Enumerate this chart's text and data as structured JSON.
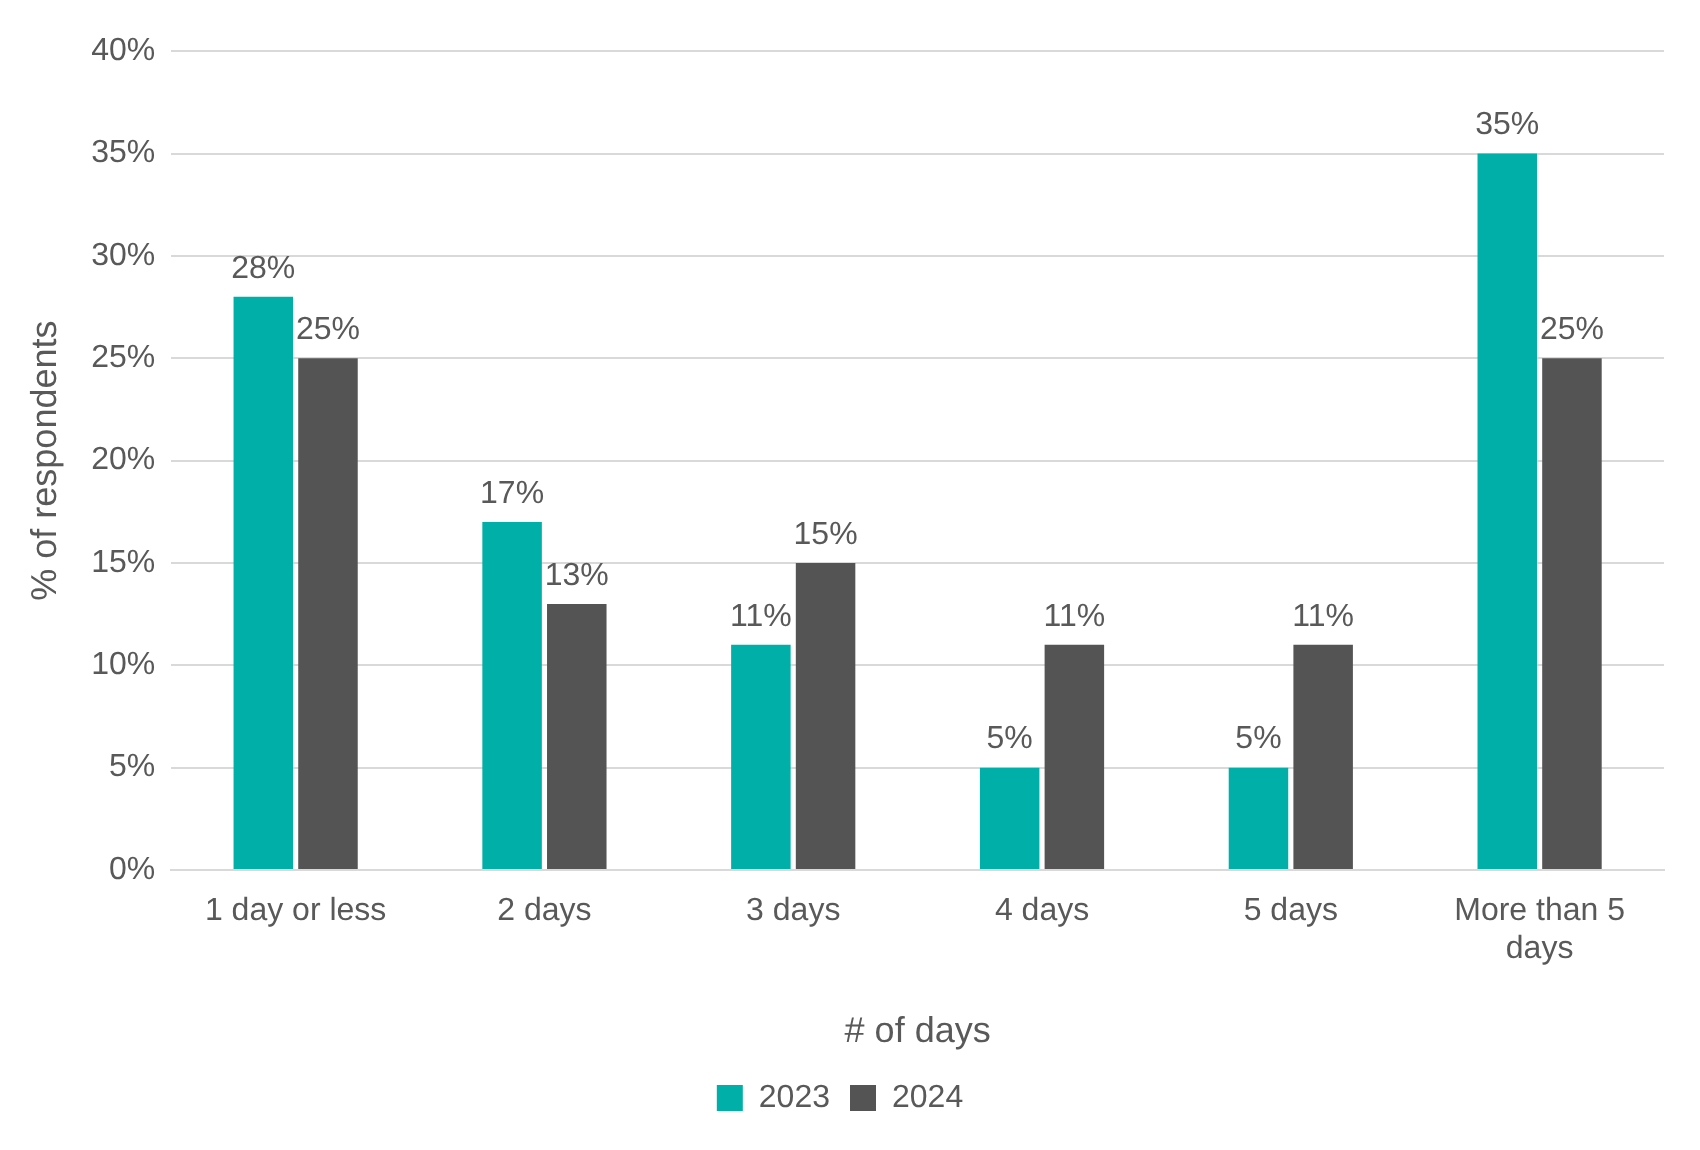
{
  "chart_data": {
    "type": "bar",
    "xlabel": "# of days",
    "ylabel": "% of respondents",
    "categories": [
      "1 day or less",
      "2 days",
      "3 days",
      "4 days",
      "5 days",
      "More than 5 days"
    ],
    "series": [
      {
        "name": "2023",
        "color": "#00b0a8",
        "values": [
          28,
          17,
          11,
          5,
          5,
          35
        ],
        "value_labels": [
          "28%",
          "17%",
          "11%",
          "5%",
          "5%",
          "35%"
        ]
      },
      {
        "name": "2024",
        "color": "#545454",
        "values": [
          25,
          13,
          15,
          11,
          11,
          25
        ],
        "value_labels": [
          "25%",
          "13%",
          "15%",
          "11%",
          "11%",
          "25%"
        ]
      }
    ],
    "ylim": [
      0,
      40
    ],
    "yticks": [
      {
        "value": 0,
        "label": "0%"
      },
      {
        "value": 5,
        "label": "5%"
      },
      {
        "value": 10,
        "label": "10%"
      },
      {
        "value": 15,
        "label": "15%"
      },
      {
        "value": 20,
        "label": "20%"
      },
      {
        "value": 25,
        "label": "25%"
      },
      {
        "value": 30,
        "label": "30%"
      },
      {
        "value": 35,
        "label": "35%"
      },
      {
        "value": 40,
        "label": "40%"
      }
    ],
    "grid": "y",
    "legend": "bottom"
  }
}
